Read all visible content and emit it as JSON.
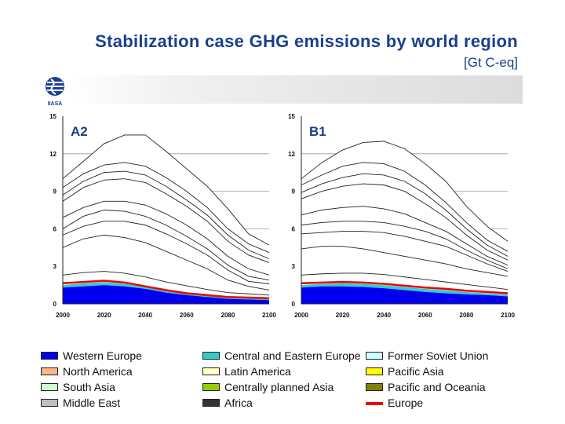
{
  "slide": {
    "title": "Stabilization case GHG emissions by world region",
    "unit": "[Gt C-eq]",
    "logo_name": "IIASA"
  },
  "legend": [
    {
      "label": "Western Europe",
      "color": "#0000ee",
      "kind": "area"
    },
    {
      "label": "Central and Eastern Europe",
      "color": "#33cccc",
      "kind": "area"
    },
    {
      "label": "Former Soviet Union",
      "color": "#ccffff",
      "kind": "area"
    },
    {
      "label": "North America",
      "color": "#ffb58a",
      "kind": "area"
    },
    {
      "label": "Latin America",
      "color": "#ffffcc",
      "kind": "area"
    },
    {
      "label": "Pacific Asia",
      "color": "#ffff00",
      "kind": "area"
    },
    {
      "label": "South Asia",
      "color": "#ccffcc",
      "kind": "area"
    },
    {
      "label": "Centrally planned Asia",
      "color": "#99cc00",
      "kind": "area"
    },
    {
      "label": "Pacific and Oceania",
      "color": "#808000",
      "kind": "area"
    },
    {
      "label": "Middle East",
      "color": "#c0c0c0",
      "kind": "area"
    },
    {
      "label": "Africa",
      "color": "#333333",
      "kind": "area"
    },
    {
      "label": "Europe",
      "color": "#ee0000",
      "kind": "line"
    }
  ],
  "chart_data": [
    {
      "type": "area",
      "title": "A2",
      "x": [
        2000,
        2010,
        2020,
        2030,
        2040,
        2050,
        2060,
        2070,
        2080,
        2090,
        2100
      ],
      "ylim": [
        0,
        15
      ],
      "yticks": [
        0,
        3,
        6,
        9,
        12,
        15
      ],
      "xticks": [
        2000,
        2020,
        2040,
        2060,
        2080,
        2100
      ],
      "gridlines": [
        3,
        6,
        9,
        12
      ],
      "series": [
        {
          "name": "Western Europe",
          "values": [
            1.3,
            1.4,
            1.5,
            1.4,
            1.2,
            0.9,
            0.7,
            0.55,
            0.4,
            0.35,
            0.3
          ]
        },
        {
          "name": "Central and Eastern Europe",
          "values": [
            1.5,
            1.65,
            1.75,
            1.6,
            1.35,
            1.05,
            0.8,
            0.65,
            0.5,
            0.45,
            0.4
          ]
        },
        {
          "name": "Former Soviet Union",
          "values": [
            2.3,
            2.5,
            2.6,
            2.45,
            2.15,
            1.75,
            1.45,
            1.15,
            0.9,
            0.8,
            0.7
          ]
        },
        {
          "name": "North America",
          "values": [
            4.5,
            5.2,
            5.5,
            5.3,
            4.9,
            4.2,
            3.5,
            2.8,
            1.9,
            1.4,
            1.1
          ]
        },
        {
          "name": "Latin America",
          "values": [
            5.5,
            6.2,
            6.6,
            6.6,
            6.3,
            5.6,
            4.8,
            3.9,
            2.7,
            1.8,
            1.6
          ]
        },
        {
          "name": "Pacific Asia",
          "values": [
            6.0,
            7.0,
            7.5,
            7.4,
            7.0,
            6.3,
            5.4,
            4.4,
            3.1,
            2.2,
            1.9
          ]
        },
        {
          "name": "South Asia",
          "values": [
            6.9,
            7.7,
            8.2,
            8.2,
            7.9,
            7.2,
            6.3,
            5.2,
            3.8,
            2.8,
            2.3
          ]
        },
        {
          "name": "Centrally planned Asia",
          "values": [
            8.2,
            9.3,
            9.9,
            10.0,
            9.7,
            8.8,
            7.8,
            6.6,
            5.0,
            3.9,
            3.3
          ]
        },
        {
          "name": "Pacific and Oceania",
          "values": [
            8.7,
            9.8,
            10.5,
            10.6,
            10.3,
            9.4,
            8.3,
            7.1,
            5.5,
            4.3,
            3.6
          ]
        },
        {
          "name": "Middle East",
          "values": [
            9.3,
            10.4,
            11.1,
            11.3,
            11.0,
            10.1,
            9.0,
            7.7,
            6.0,
            4.8,
            4.1
          ]
        },
        {
          "name": "Africa",
          "values": [
            10.0,
            11.4,
            12.8,
            13.5,
            13.5,
            12.2,
            10.8,
            9.4,
            7.6,
            5.6,
            4.7
          ]
        }
      ],
      "line_series": {
        "name": "Europe",
        "values": [
          1.65,
          1.75,
          1.85,
          1.7,
          1.4,
          1.1,
          0.85,
          0.7,
          0.55,
          0.5,
          0.45
        ]
      }
    },
    {
      "type": "area",
      "title": "B1",
      "x": [
        2000,
        2010,
        2020,
        2030,
        2040,
        2050,
        2060,
        2070,
        2080,
        2090,
        2100
      ],
      "ylim": [
        0,
        15
      ],
      "yticks": [
        0,
        3,
        6,
        9,
        12,
        15
      ],
      "xticks": [
        2000,
        2020,
        2040,
        2060,
        2080,
        2100
      ],
      "gridlines": [
        3,
        6,
        9,
        12
      ],
      "series": [
        {
          "name": "Western Europe",
          "values": [
            1.3,
            1.4,
            1.4,
            1.35,
            1.25,
            1.1,
            0.95,
            0.85,
            0.75,
            0.7,
            0.6
          ]
        },
        {
          "name": "Central and Eastern Europe",
          "values": [
            1.5,
            1.6,
            1.65,
            1.6,
            1.5,
            1.35,
            1.2,
            1.1,
            0.95,
            0.85,
            0.75
          ]
        },
        {
          "name": "Former Soviet Union",
          "values": [
            2.3,
            2.4,
            2.45,
            2.45,
            2.35,
            2.15,
            1.95,
            1.75,
            1.55,
            1.35,
            1.15
          ]
        },
        {
          "name": "North America",
          "values": [
            4.4,
            4.6,
            4.6,
            4.4,
            4.1,
            3.8,
            3.5,
            3.2,
            2.8,
            2.5,
            2.2
          ]
        },
        {
          "name": "Latin America",
          "values": [
            5.6,
            5.7,
            5.8,
            5.8,
            5.7,
            5.4,
            5.0,
            4.6,
            3.9,
            3.2,
            2.6
          ]
        },
        {
          "name": "Pacific Asia",
          "values": [
            6.3,
            6.5,
            6.6,
            6.6,
            6.5,
            6.2,
            5.8,
            5.2,
            4.3,
            3.5,
            2.8
          ]
        },
        {
          "name": "South Asia",
          "values": [
            7.1,
            7.5,
            7.7,
            7.8,
            7.6,
            7.2,
            6.5,
            5.8,
            4.8,
            3.8,
            3.1
          ]
        },
        {
          "name": "Centrally planned Asia",
          "values": [
            8.4,
            9.0,
            9.4,
            9.6,
            9.5,
            9.0,
            8.0,
            6.9,
            5.5,
            4.3,
            3.5
          ]
        },
        {
          "name": "Pacific and Oceania",
          "values": [
            8.9,
            9.6,
            10.1,
            10.4,
            10.3,
            9.8,
            8.8,
            7.5,
            6.0,
            4.7,
            3.8
          ]
        },
        {
          "name": "Middle East",
          "values": [
            9.5,
            10.3,
            11.0,
            11.3,
            11.2,
            10.6,
            9.5,
            8.1,
            6.5,
            5.1,
            4.2
          ]
        },
        {
          "name": "Africa",
          "values": [
            10.0,
            11.3,
            12.3,
            12.9,
            13.0,
            12.4,
            11.2,
            9.8,
            7.8,
            6.2,
            5.0
          ]
        }
      ],
      "line_series": {
        "name": "Europe",
        "values": [
          1.65,
          1.7,
          1.75,
          1.7,
          1.6,
          1.45,
          1.3,
          1.2,
          1.05,
          0.95,
          0.85
        ]
      }
    }
  ]
}
